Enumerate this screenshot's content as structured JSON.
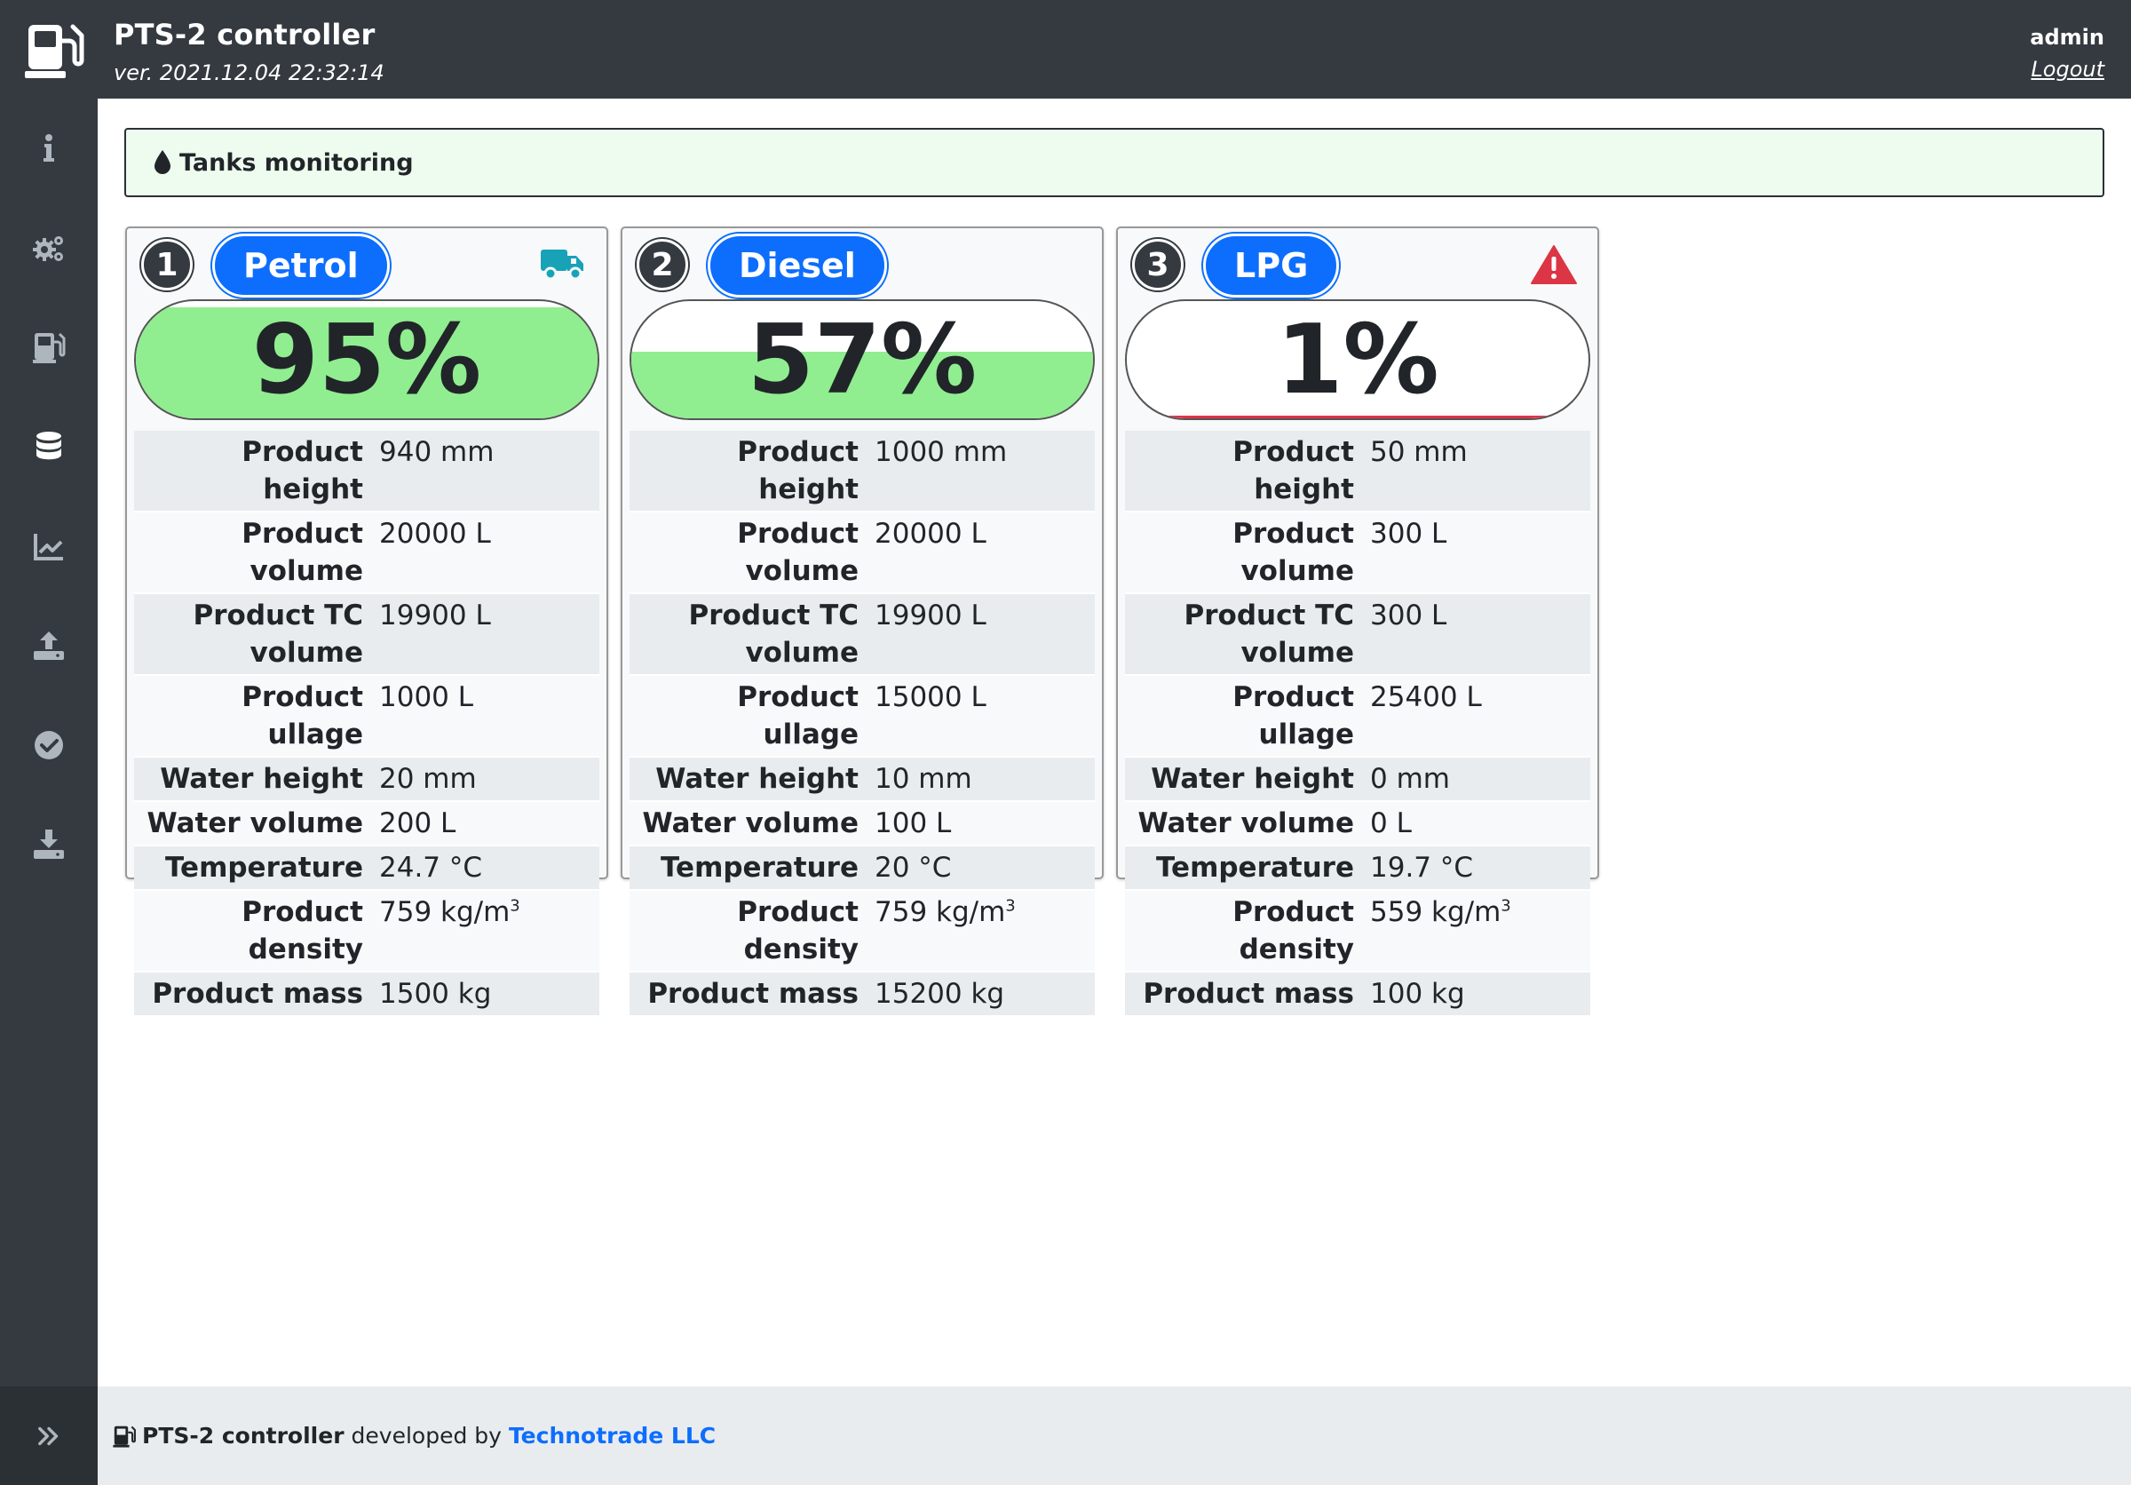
{
  "header": {
    "title": "PTS-2 controller",
    "version": "ver. 2021.12.04 22:32:14",
    "user": "admin",
    "logout_label": "Logout",
    "logo_icon": "fuel-pump-icon"
  },
  "sidebar": {
    "items": [
      {
        "icon": "info-icon"
      },
      {
        "icon": "gears-icon"
      },
      {
        "icon": "fuel-pump-icon"
      },
      {
        "icon": "database-icon"
      },
      {
        "icon": "chart-line-icon"
      },
      {
        "icon": "upload-icon"
      },
      {
        "icon": "check-circle-icon"
      },
      {
        "icon": "download-icon"
      }
    ],
    "toggle_icon": "double-chevron-right-icon"
  },
  "page": {
    "banner_title": "Tanks monitoring",
    "banner_icon": "droplet-icon"
  },
  "tanks": [
    {
      "number": "1",
      "product": "Petrol",
      "status_icon": "truck-icon",
      "level": "95%",
      "fill_fraction": 0.95,
      "rows": [
        {
          "label": "Product height",
          "value": "940 mm"
        },
        {
          "label": "Product volume",
          "value": "20000 L"
        },
        {
          "label": "Product TC volume",
          "value": "19900 L"
        },
        {
          "label": "Product ullage",
          "value": "1000 L"
        },
        {
          "label": "Water height",
          "value": "20 mm"
        },
        {
          "label": "Water volume",
          "value": "200 L"
        },
        {
          "label": "Temperature",
          "value": "24.7 °C"
        },
        {
          "label": "Product density",
          "value": "759 kg/m",
          "sup": "3"
        },
        {
          "label": "Product mass",
          "value": "1500 kg"
        }
      ]
    },
    {
      "number": "2",
      "product": "Diesel",
      "status_icon": "",
      "level": "57%",
      "fill_fraction": 0.57,
      "rows": [
        {
          "label": "Product height",
          "value": "1000 mm"
        },
        {
          "label": "Product volume",
          "value": "20000 L"
        },
        {
          "label": "Product TC volume",
          "value": "19900 L"
        },
        {
          "label": "Product ullage",
          "value": "15000 L"
        },
        {
          "label": "Water height",
          "value": "10 mm"
        },
        {
          "label": "Water volume",
          "value": "100 L"
        },
        {
          "label": "Temperature",
          "value": "20 °C"
        },
        {
          "label": "Product density",
          "value": "759 kg/m",
          "sup": "3"
        },
        {
          "label": "Product mass",
          "value": "15200 kg"
        }
      ]
    },
    {
      "number": "3",
      "product": "LPG",
      "status_icon": "warning-triangle-icon",
      "level": "1%",
      "fill_fraction": 0.01,
      "rows": [
        {
          "label": "Product height",
          "value": "50 mm"
        },
        {
          "label": "Product volume",
          "value": "300 L"
        },
        {
          "label": "Product TC volume",
          "value": "300 L"
        },
        {
          "label": "Product ullage",
          "value": "25400 L"
        },
        {
          "label": "Water height",
          "value": "0 mm"
        },
        {
          "label": "Water volume",
          "value": "0 L"
        },
        {
          "label": "Temperature",
          "value": "19.7 °C"
        },
        {
          "label": "Product density",
          "value": "559 kg/m",
          "sup": "3"
        },
        {
          "label": "Product mass",
          "value": "100 kg"
        }
      ]
    }
  ],
  "footer": {
    "product": "PTS-2 controller",
    "developed_by": "developed by",
    "company": "Technotrade LLC"
  },
  "colors": {
    "header_bg": "#343a40",
    "accent": "#0d6efd",
    "fill_green": "#90ee90",
    "warning_red": "#dc3545",
    "truck_teal": "#17a2b8"
  }
}
